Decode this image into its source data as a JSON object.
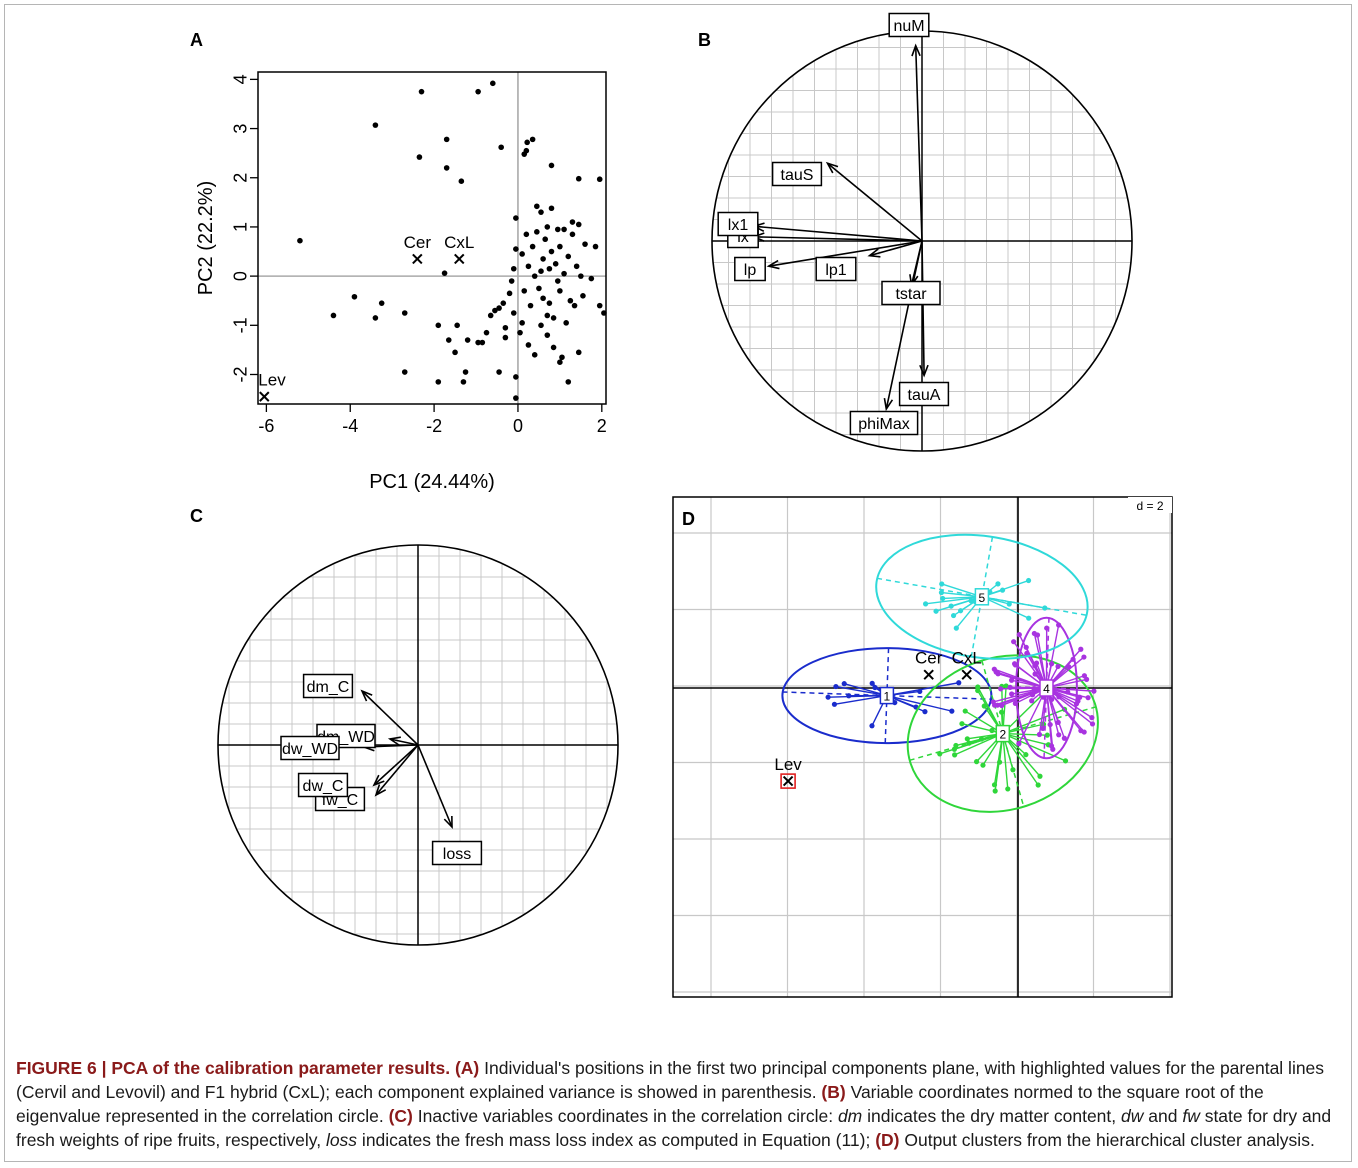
{
  "chart_data": [
    {
      "panel": "A",
      "type": "scatter",
      "xlabel": "PC1 (24.44%)",
      "ylabel": "PC2 (22.2%)",
      "xlim": [
        -6.2,
        2.1
      ],
      "ylim": [
        -2.6,
        4.15
      ],
      "xticks": [
        -6,
        -4,
        -2,
        0,
        2
      ],
      "yticks": [
        -2,
        -1,
        0,
        1,
        2,
        3,
        4
      ],
      "points": [
        [
          -0.6,
          3.92
        ],
        [
          -2.3,
          3.75
        ],
        [
          -0.95,
          3.75
        ],
        [
          -3.4,
          3.07
        ],
        [
          -1.7,
          2.78
        ],
        [
          -2.35,
          2.42
        ],
        [
          -1.7,
          2.2
        ],
        [
          -1.35,
          1.93
        ],
        [
          -0.4,
          2.62
        ],
        [
          0.22,
          2.72
        ],
        [
          0.35,
          2.78
        ],
        [
          0.2,
          2.55
        ],
        [
          0.15,
          2.48
        ],
        [
          0.8,
          2.25
        ],
        [
          1.45,
          1.98
        ],
        [
          1.95,
          1.97
        ],
        [
          -5.2,
          0.72
        ],
        [
          -1.75,
          0.06
        ],
        [
          -3.9,
          -0.42
        ],
        [
          -3.25,
          -0.55
        ],
        [
          -4.4,
          -0.8
        ],
        [
          -3.4,
          -0.85
        ],
        [
          -2.7,
          -0.75
        ],
        [
          -2.7,
          -1.95
        ],
        [
          -1.9,
          -2.15
        ],
        [
          -1.3,
          -2.15
        ],
        [
          -1.25,
          -1.95
        ],
        [
          -0.45,
          -1.95
        ],
        [
          -0.05,
          -2.05
        ],
        [
          -0.05,
          -2.48
        ],
        [
          -1.9,
          -1.0
        ],
        [
          -1.65,
          -1.3
        ],
        [
          -1.5,
          -1.55
        ],
        [
          -1.45,
          -1.0
        ],
        [
          -1.2,
          -1.3
        ],
        [
          -0.95,
          -1.35
        ],
        [
          -0.85,
          -1.35
        ],
        [
          -0.75,
          -1.15
        ],
        [
          -0.65,
          -0.8
        ],
        [
          -0.55,
          -0.7
        ],
        [
          -0.45,
          -0.65
        ],
        [
          -0.35,
          -0.55
        ],
        [
          -0.3,
          -1.05
        ],
        [
          -0.3,
          -1.25
        ],
        [
          -0.2,
          -0.35
        ],
        [
          -0.15,
          -0.1
        ],
        [
          -0.1,
          0.15
        ],
        [
          -0.1,
          -0.75
        ],
        [
          -0.05,
          0.55
        ],
        [
          -0.05,
          1.18
        ],
        [
          0.05,
          -1.15
        ],
        [
          0.1,
          -0.95
        ],
        [
          0.1,
          0.45
        ],
        [
          0.15,
          -0.3
        ],
        [
          0.2,
          0.85
        ],
        [
          0.25,
          0.2
        ],
        [
          0.25,
          -1.4
        ],
        [
          0.3,
          -0.6
        ],
        [
          0.35,
          0.6
        ],
        [
          0.4,
          0.0
        ],
        [
          0.4,
          -1.6
        ],
        [
          0.45,
          1.42
        ],
        [
          0.45,
          0.9
        ],
        [
          0.5,
          -0.25
        ],
        [
          0.55,
          1.3
        ],
        [
          0.55,
          -1.0
        ],
        [
          0.6,
          0.35
        ],
        [
          0.6,
          -0.45
        ],
        [
          0.65,
          0.75
        ],
        [
          0.7,
          1.0
        ],
        [
          0.7,
          -1.2
        ],
        [
          0.75,
          0.15
        ],
        [
          0.75,
          -0.55
        ],
        [
          0.8,
          1.38
        ],
        [
          0.8,
          0.5
        ],
        [
          0.85,
          -0.85
        ],
        [
          0.85,
          -1.45
        ],
        [
          0.9,
          0.25
        ],
        [
          0.95,
          0.95
        ],
        [
          0.95,
          -0.1
        ],
        [
          1.0,
          0.6
        ],
        [
          1.0,
          -0.3
        ],
        [
          1.0,
          -1.75
        ],
        [
          1.05,
          -1.65
        ],
        [
          1.1,
          0.95
        ],
        [
          1.1,
          0.05
        ],
        [
          1.15,
          -0.95
        ],
        [
          1.2,
          0.4
        ],
        [
          1.2,
          -2.15
        ],
        [
          1.25,
          -0.5
        ],
        [
          1.3,
          1.1
        ],
        [
          1.3,
          0.85
        ],
        [
          1.35,
          -0.6
        ],
        [
          1.4,
          0.2
        ],
        [
          1.45,
          1.05
        ],
        [
          1.5,
          0.0
        ],
        [
          1.55,
          -0.4
        ],
        [
          1.6,
          0.65
        ],
        [
          1.75,
          -0.05
        ],
        [
          1.85,
          0.6
        ],
        [
          1.95,
          -0.6
        ],
        [
          2.05,
          -0.75
        ],
        [
          0.55,
          0.1
        ],
        [
          0.7,
          -0.8
        ],
        [
          1.45,
          -1.55
        ]
      ],
      "highlighted": [
        {
          "label": "Cer",
          "x": -2.4,
          "y": 0.35
        },
        {
          "label": "CxL",
          "x": -1.4,
          "y": 0.35
        },
        {
          "label": "Lev",
          "x": -6.05,
          "y": -2.45
        }
      ]
    },
    {
      "panel": "B",
      "type": "correlation-circle",
      "variables": [
        {
          "name": "nuM",
          "x": -0.03,
          "y": 0.93
        },
        {
          "name": "tauS",
          "x": -0.45,
          "y": 0.37
        },
        {
          "name": "lx1",
          "x": -0.8,
          "y": 0.07
        },
        {
          "name": "lx",
          "x": -0.8,
          "y": 0.02
        },
        {
          "name": "lp",
          "x": -0.73,
          "y": -0.12
        },
        {
          "name": "lp1",
          "x": -0.25,
          "y": -0.07
        },
        {
          "name": "tstar",
          "x": -0.05,
          "y": -0.21
        },
        {
          "name": "tauA",
          "x": 0.01,
          "y": -0.64
        },
        {
          "name": "phiMax",
          "x": -0.17,
          "y": -0.8
        }
      ]
    },
    {
      "panel": "C",
      "type": "correlation-circle",
      "variables": [
        {
          "name": "dm_C",
          "x": -0.28,
          "y": 0.27
        },
        {
          "name": "dm_WD",
          "x": -0.14,
          "y": 0.03
        },
        {
          "name": "dw_WD",
          "x": -0.27,
          "y": -0.01
        },
        {
          "name": "dw_C",
          "x": -0.22,
          "y": -0.2
        },
        {
          "name": "fw_C",
          "x": -0.21,
          "y": -0.25
        },
        {
          "name": "loss",
          "x": 0.17,
          "y": -0.41
        }
      ]
    },
    {
      "panel": "D",
      "type": "cluster-plot",
      "scale_label": "d = 2",
      "clusters": [
        {
          "id": "1",
          "color": "#1a2ccc",
          "cx": -3.45,
          "cy": -0.2
        },
        {
          "id": "2",
          "color": "#2fd63a",
          "cx": -0.4,
          "cy": -1.2
        },
        {
          "id": "4",
          "color": "#a833e0",
          "cx": 0.75,
          "cy": 0.0
        },
        {
          "id": "5",
          "color": "#2fd9d9",
          "cx": -0.95,
          "cy": 2.4
        }
      ],
      "highlighted": [
        {
          "label": "Cer",
          "x": -2.35,
          "y": 0.35
        },
        {
          "label": "CxL",
          "x": -1.35,
          "y": 0.35
        },
        {
          "label": "Lev",
          "x": -6.05,
          "y": -2.45
        }
      ]
    }
  ],
  "panels": {
    "A": "A",
    "B": "B",
    "C": "C",
    "D": "D"
  },
  "caption": {
    "fig": "FIGURE 6 | PCA of the calibration parameter results.",
    "a_tag": "(A)",
    "a_text": " Individual's positions in the first two principal components plane, with highlighted values for the parental lines (Cervil and Levovil) and F1 hybrid (CxL); each component explained variance is showed in parenthesis. ",
    "b_tag": "(B)",
    "b_text": " Variable coordinates normed to the square root of the eigenvalue represented in the correlation circle. ",
    "c_tag": "(C)",
    "c_text1": " Inactive variables coordinates in the correlation circle: ",
    "c_dm": "dm",
    "c_text2": " indicates the dry matter content, ",
    "c_dw": "dw",
    "c_and": " and ",
    "c_fw": "fw",
    "c_text3": " state for dry and fresh weights of ripe fruits, respectively, ",
    "c_loss": "loss",
    "c_text4": " indicates the fresh mass loss index as computed in Equation (11); ",
    "d_tag": "(D)",
    "d_text": " Output clusters from the hierarchical cluster analysis."
  }
}
